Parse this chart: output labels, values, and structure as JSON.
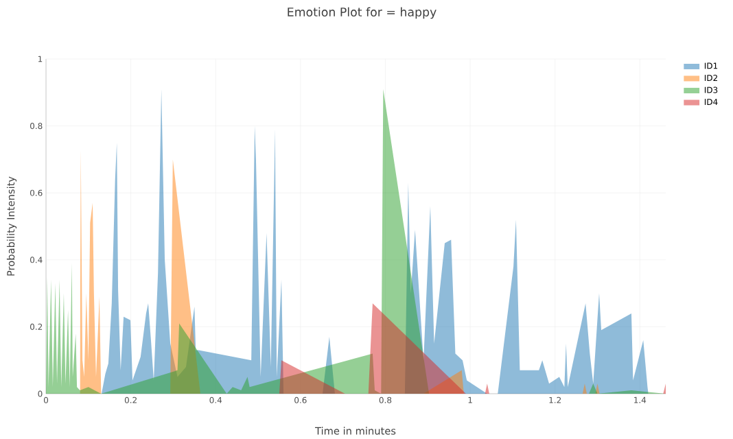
{
  "chart_data": {
    "type": "area",
    "title": "Emotion Plot for = happy",
    "xlabel": "Time in minutes",
    "ylabel": "Probability Intensity",
    "xlim": [
      0,
      1.461
    ],
    "ylim": [
      0,
      1
    ],
    "xticks": [
      0,
      0.2,
      0.4,
      0.6,
      0.8,
      1,
      1.2,
      1.4
    ],
    "yticks": [
      0,
      0.2,
      0.4,
      0.6,
      0.8,
      1
    ],
    "grid": true,
    "legend": "top right",
    "series": [
      {
        "name": "ID1",
        "color": "#1f77b4",
        "x": [
          0.131,
          0.14,
          0.147,
          0.155,
          0.163,
          0.167,
          0.17,
          0.176,
          0.183,
          0.199,
          0.204,
          0.223,
          0.236,
          0.241,
          0.248,
          0.254,
          0.264,
          0.272,
          0.28,
          0.293,
          0.31,
          0.33,
          0.35,
          0.353,
          0.36,
          0.484,
          0.492,
          0.495,
          0.506,
          0.52,
          0.53,
          0.536,
          0.54,
          0.544,
          0.555,
          0.56,
          0.652,
          0.668,
          0.681,
          0.846,
          0.854,
          0.86,
          0.87,
          0.89,
          0.906,
          0.915,
          0.94,
          0.955,
          0.965,
          0.982,
          0.992,
          1.04,
          1.065,
          1.102,
          1.108,
          1.117,
          1.162,
          1.17,
          1.186,
          1.21,
          1.222,
          1.226,
          1.23,
          1.272,
          1.282,
          1.29,
          1.304,
          1.309,
          1.38,
          1.384,
          1.408,
          1.418,
          1.42
        ],
        "values": [
          0,
          0.06,
          0.09,
          0.27,
          0.64,
          0.75,
          0.31,
          0.07,
          0.23,
          0.22,
          0.04,
          0.11,
          0.24,
          0.27,
          0.15,
          0.04,
          0.36,
          0.91,
          0.4,
          0.15,
          0.05,
          0.08,
          0.26,
          0.13,
          0.13,
          0.1,
          0.8,
          0.7,
          0.05,
          0.48,
          0.08,
          0.5,
          0.79,
          0.05,
          0.34,
          0,
          0,
          0.17,
          0,
          0,
          0.63,
          0.3,
          0.49,
          0.1,
          0.56,
          0.15,
          0.45,
          0.46,
          0.12,
          0.1,
          0.04,
          0,
          0,
          0.38,
          0.52,
          0.07,
          0.07,
          0.1,
          0.03,
          0.05,
          0.02,
          0.15,
          0.02,
          0.27,
          0.12,
          0.03,
          0.3,
          0.19,
          0.24,
          0.04,
          0.16,
          0.02,
          0
        ]
      },
      {
        "name": "ID2",
        "color": "#ff7f0e",
        "x": [
          0.08,
          0.082,
          0.086,
          0.09,
          0.095,
          0.1,
          0.104,
          0.11,
          0.113,
          0.118,
          0.126,
          0.13,
          0.293,
          0.299,
          0.364,
          0.89,
          0.98,
          0.985,
          1.265,
          1.27,
          1.275,
          1.295,
          1.3,
          1.305
        ],
        "values": [
          0,
          0.73,
          0.1,
          0.05,
          0.3,
          0.1,
          0.51,
          0.57,
          0.3,
          0.05,
          0.29,
          0,
          0,
          0.7,
          0,
          0,
          0.07,
          0,
          0,
          0.03,
          0,
          0,
          0.03,
          0
        ]
      },
      {
        "name": "ID3",
        "color": "#2ca02c",
        "x": [
          0,
          0.003,
          0.006,
          0.012,
          0.016,
          0.022,
          0.026,
          0.032,
          0.036,
          0.042,
          0.046,
          0.052,
          0.056,
          0.061,
          0.063,
          0.07,
          0.073,
          0.08,
          0.1,
          0.13,
          0.31,
          0.314,
          0.426,
          0.44,
          0.46,
          0.475,
          0.48,
          0.77,
          0.775,
          0.79,
          0.795,
          0.903,
          1.28,
          1.29,
          1.3,
          1.38,
          1.46
        ],
        "values": [
          0,
          0.35,
          0.02,
          0.34,
          0.02,
          0.33,
          0.03,
          0.34,
          0.02,
          0.3,
          0.03,
          0.25,
          0.02,
          0.39,
          0.05,
          0.18,
          0.02,
          0.01,
          0.02,
          0,
          0.07,
          0.21,
          0,
          0.02,
          0.01,
          0.05,
          0.02,
          0.12,
          0.01,
          0,
          0.91,
          0,
          0,
          0.03,
          0,
          0.01,
          0
        ]
      },
      {
        "name": "ID4",
        "color": "#d62728",
        "x": [
          0.55,
          0.555,
          0.705,
          0.76,
          0.77,
          0.99,
          1.035,
          1.04,
          1.045,
          1.455,
          1.461
        ],
        "values": [
          0,
          0.1,
          0,
          0,
          0.27,
          0,
          0,
          0.03,
          0,
          0,
          0.03
        ]
      }
    ]
  }
}
